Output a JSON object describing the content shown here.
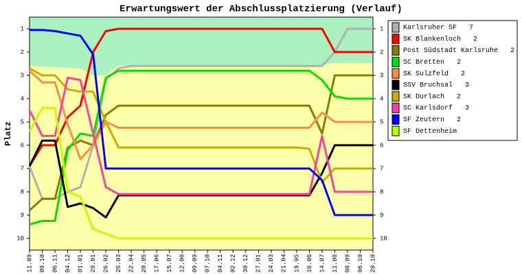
{
  "chart_data": {
    "type": "line",
    "title": "Erwartungswert der Abschlussplatzierung (Verlauf)",
    "y_label": "Platz",
    "y_inverted": true,
    "categories": [
      "11.09",
      "09.10",
      "06.11",
      "04.12",
      "01.01",
      "29.01",
      "26.02",
      "25.03",
      "22.04",
      "20.05",
      "17.06",
      "15.07",
      "12.08",
      "09.09",
      "07.10",
      "04.11",
      "02.12",
      "30.12",
      "27.01",
      "24.03",
      "21.04",
      "19.05",
      "16.06",
      "14.07",
      "11.08",
      "08.09",
      "06.10",
      "20.10"
    ],
    "ylim": [
      0.5,
      10.5
    ],
    "yticks": [
      1,
      2,
      3,
      4,
      5,
      6,
      7,
      8,
      9,
      10
    ],
    "legend": "right",
    "series": [
      {
        "name": "Karlsruher SF",
        "count": 7,
        "color": "#b0b0b0",
        "values": [
          6.9,
          8.3,
          8.3,
          8.0,
          7.8,
          6.0,
          3.2,
          2.7,
          2.6,
          2.6,
          2.6,
          2.6,
          2.6,
          2.6,
          2.6,
          2.6,
          2.6,
          2.6,
          2.6,
          2.6,
          2.6,
          2.6,
          2.6,
          2.6,
          2.0,
          1.0,
          1.0,
          1.0
        ]
      },
      {
        "name": "SK Blankenloch",
        "count": 2,
        "color": "#ff0000",
        "values": [
          6.9,
          6.0,
          6.0,
          4.8,
          4.3,
          2.0,
          1.1,
          1.0,
          1.0,
          1.0,
          1.0,
          1.0,
          1.0,
          1.0,
          1.0,
          1.0,
          1.0,
          1.0,
          1.0,
          1.0,
          1.0,
          1.0,
          1.0,
          1.0,
          2.0,
          2.0,
          2.0,
          2.0
        ]
      },
      {
        "name": "Post Südstadt Karlsruhe",
        "count": 2,
        "color": "#808000",
        "values": [
          8.8,
          8.3,
          8.3,
          6.1,
          5.8,
          6.0,
          4.7,
          4.3,
          4.3,
          4.3,
          4.3,
          4.3,
          4.3,
          4.3,
          4.3,
          4.3,
          4.3,
          4.3,
          4.3,
          4.3,
          4.3,
          4.3,
          4.3,
          5.5,
          3.0,
          3.0,
          3.0,
          3.0
        ]
      },
      {
        "name": "SC Bretten",
        "count": 2,
        "color": "#00e000",
        "values": [
          9.4,
          9.25,
          9.25,
          6.2,
          5.5,
          5.6,
          3.1,
          2.8,
          2.8,
          2.8,
          2.8,
          2.8,
          2.8,
          2.8,
          2.8,
          2.8,
          2.8,
          2.8,
          2.8,
          2.8,
          2.8,
          2.8,
          2.8,
          3.2,
          3.9,
          4.0,
          4.0,
          4.0
        ]
      },
      {
        "name": "SK Sulzfeld",
        "count": 2,
        "color": "#ff8c40",
        "values": [
          2.8,
          3.3,
          3.3,
          5.1,
          6.6,
          6.0,
          5.0,
          5.25,
          5.25,
          5.25,
          5.25,
          5.25,
          5.25,
          5.25,
          5.25,
          5.25,
          5.25,
          5.25,
          5.25,
          5.25,
          5.25,
          5.25,
          5.25,
          4.6,
          5.0,
          5.0,
          5.0,
          5.0
        ]
      },
      {
        "name": "SSV Bruchsal",
        "count": 3,
        "color": "#000000",
        "values": [
          6.9,
          5.8,
          5.8,
          8.65,
          8.5,
          8.7,
          9.1,
          8.15,
          8.15,
          8.15,
          8.15,
          8.15,
          8.15,
          8.15,
          8.15,
          8.15,
          8.15,
          8.15,
          8.15,
          8.15,
          8.15,
          8.15,
          8.15,
          7.2,
          6.0,
          6.0,
          6.0,
          6.0
        ]
      },
      {
        "name": "SK Durlach",
        "count": 2,
        "color": "#c0b000",
        "values": [
          2.7,
          3.0,
          3.0,
          3.6,
          3.7,
          3.7,
          5.0,
          6.1,
          6.1,
          6.1,
          6.1,
          6.1,
          6.1,
          6.1,
          6.1,
          6.1,
          6.1,
          6.1,
          6.1,
          6.1,
          6.1,
          6.1,
          6.15,
          7.6,
          7.0,
          7.0,
          7.0,
          7.0
        ]
      },
      {
        "name": "SC Karlsdorf",
        "count": 3,
        "color": "#ff40a0",
        "values": [
          4.5,
          5.6,
          5.6,
          3.1,
          3.2,
          5.5,
          7.8,
          8.1,
          8.1,
          8.1,
          8.1,
          8.1,
          8.1,
          8.1,
          8.1,
          8.1,
          8.1,
          8.1,
          8.1,
          8.1,
          8.1,
          8.1,
          8.1,
          5.6,
          8.0,
          8.0,
          8.0,
          8.0
        ]
      },
      {
        "name": "SF Zeutern",
        "count": 2,
        "color": "#0000ff",
        "values": [
          1.05,
          1.05,
          1.1,
          1.2,
          1.3,
          2.1,
          7.0,
          7.0,
          7.0,
          7.0,
          7.0,
          7.0,
          7.0,
          7.0,
          7.0,
          7.0,
          7.0,
          7.0,
          7.0,
          7.0,
          7.0,
          7.0,
          7.0,
          7.5,
          9.0,
          9.0,
          9.0,
          9.0
        ]
      },
      {
        "name": "SF Dettenheim",
        "color": "#c0ff00",
        "values": [
          5.4,
          4.4,
          4.4,
          8.0,
          8.2,
          9.6,
          9.8,
          10.0,
          10.0,
          10.0,
          10.0,
          10.0,
          10.0,
          10.0,
          10.0,
          10.0,
          10.0,
          10.0,
          10.0,
          10.0,
          10.0,
          10.0,
          10.0,
          10.0,
          10.0,
          10.0,
          10.0,
          10.0
        ]
      }
    ]
  }
}
